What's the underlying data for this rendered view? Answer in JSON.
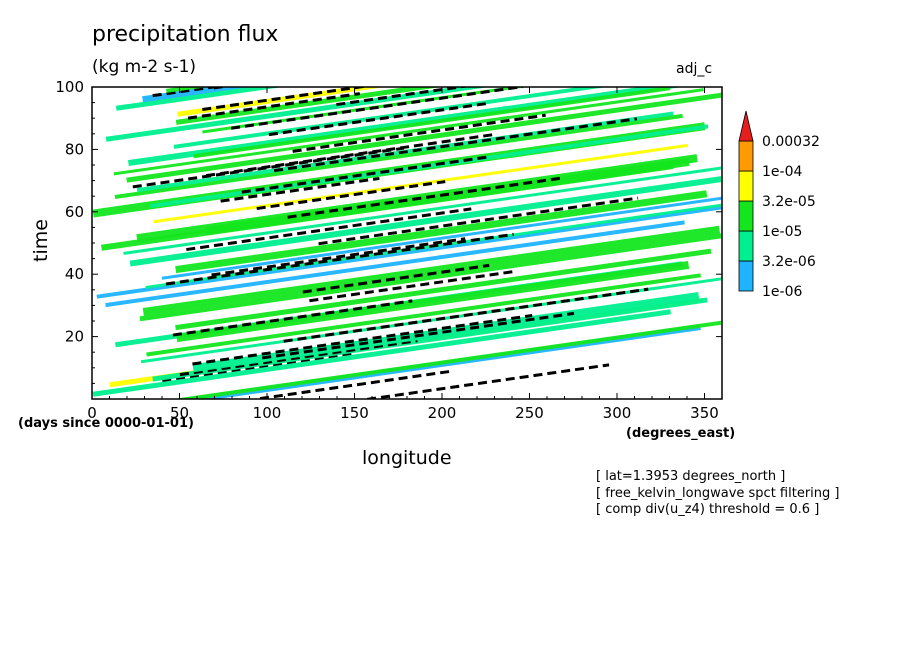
{
  "chart_data": {
    "type": "heatmap",
    "title": "precipitation flux",
    "units": "(kg m-2 s-1)",
    "tag": "adj_c",
    "xlabel": "longitude",
    "xunits": "(degrees_east)",
    "ylabel": "time",
    "yunits": "(days since 0000-01-01)",
    "xlim": [
      0,
      360
    ],
    "ylim": [
      0,
      100
    ],
    "x_ticks": [
      0,
      50,
      100,
      150,
      200,
      250,
      300,
      350
    ],
    "y_ticks": [
      20,
      40,
      60,
      80,
      100
    ],
    "colorbar": {
      "levels": [
        "1e-06",
        "3.2e-06",
        "1e-05",
        "3.2e-05",
        "1e-04",
        "0.00032"
      ],
      "colors": [
        "#1eb4ff",
        "#00f090",
        "#14e61e",
        "#ffff00",
        "#ff9b00",
        "#e61e1e"
      ]
    },
    "notes": [
      "[ lat=1.3953 degrees_north ]",
      "[ free_kelvin_longwave spct filtering ]",
      "[ comp div(u_z4) threshold = 0.6 ]"
    ]
  }
}
